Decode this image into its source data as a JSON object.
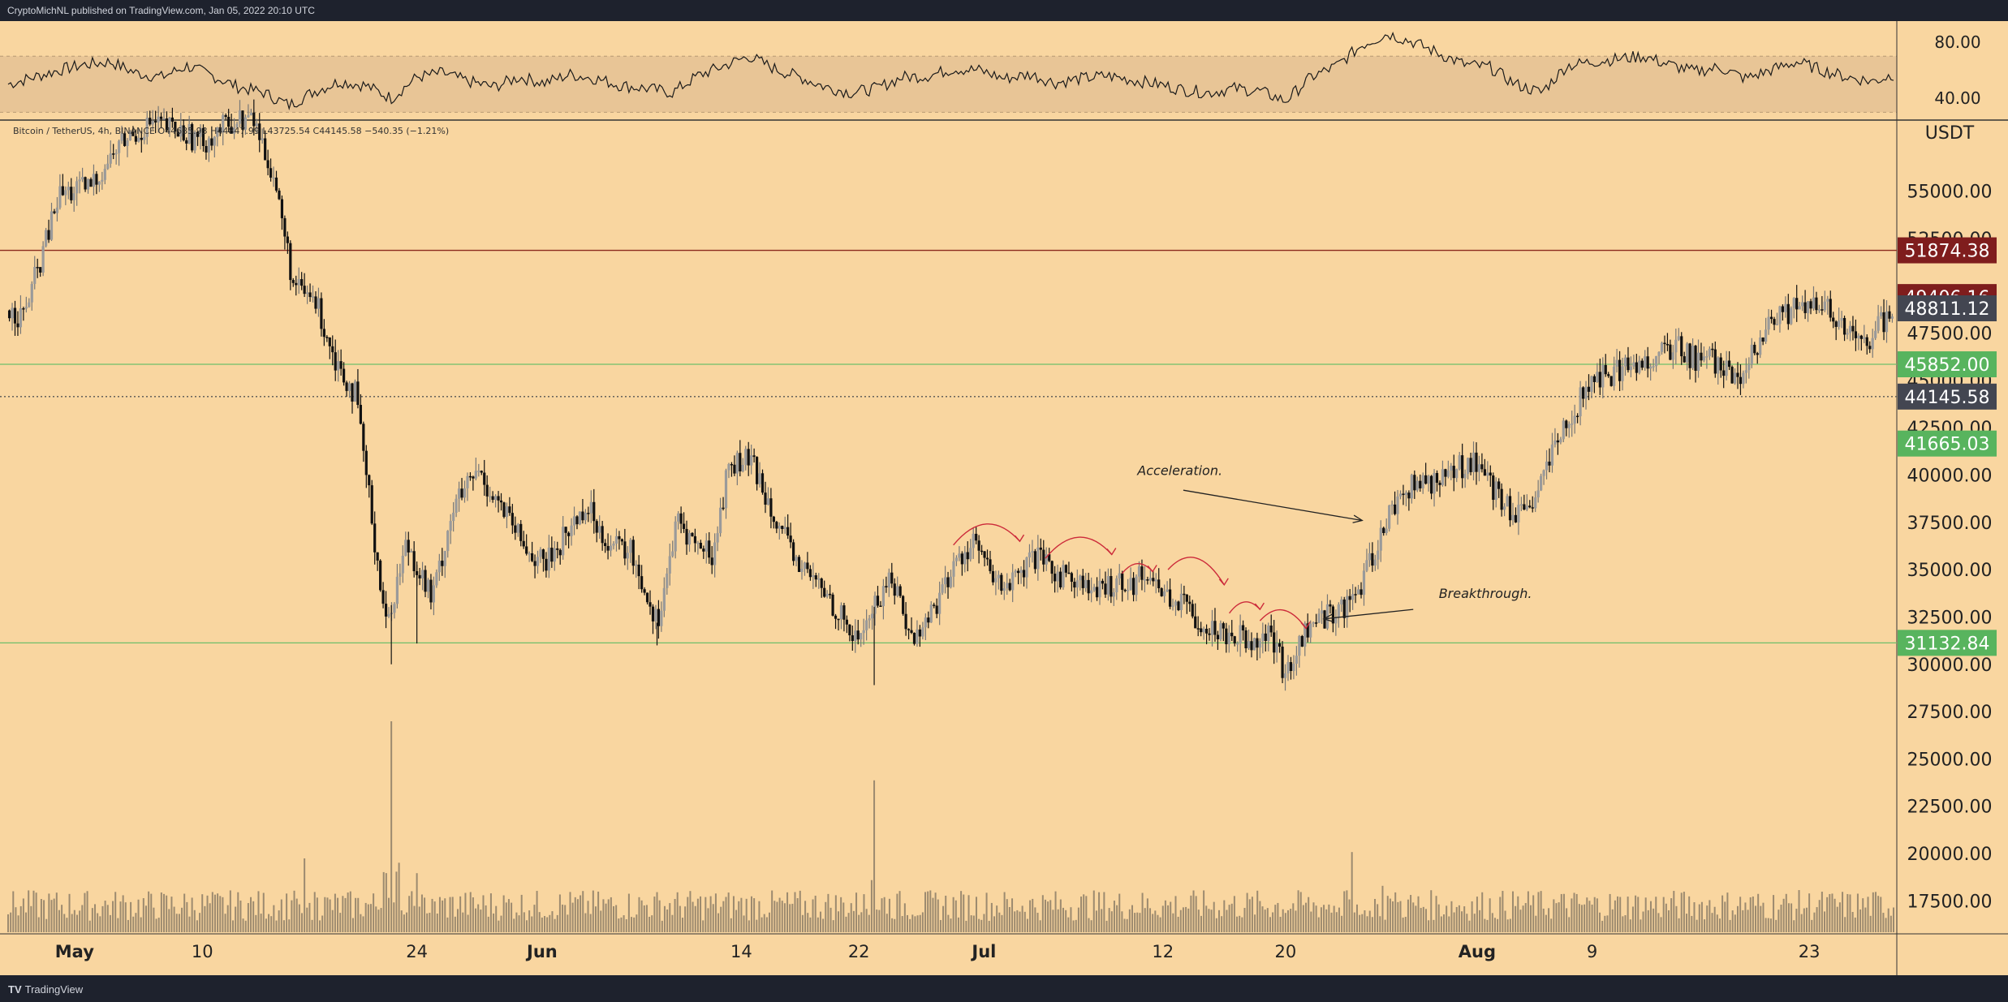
{
  "header": {
    "publish_line": "CryptoMichNL published on TradingView.com, Jan 05, 2022 20:10 UTC"
  },
  "footer": {
    "brand_logo": "TV",
    "brand_text": "TradingView"
  },
  "colors": {
    "background": "#f9d6a0",
    "candle": "#111111",
    "candle_up_wick": "#777777",
    "support_line": "#6fbf6a",
    "resistance_line": "#8b2a1e",
    "badge_red": "#7f1d1d",
    "badge_green": "#58b45e",
    "badge_dark": "#434651",
    "volume": "#8c7c66",
    "arrow_red": "#cc2a3a"
  },
  "chart_data": {
    "type": "candlestick",
    "instrument_line": "Bitcoin / TetherUS, 4h, BINANCE",
    "ohlc": {
      "open": "O44685.93",
      "high": "H44847.99",
      "low": "L43725.54",
      "close": "C44145.58",
      "change": "−540.35 (−1.21%)"
    },
    "currency": "USDT",
    "ylim": [
      15800,
      58800
    ],
    "price_ticks": [
      "55000.00",
      "52500.00",
      "47500.00",
      "45000.00",
      "42500.00",
      "40000.00",
      "37500.00",
      "35000.00",
      "32500.00",
      "30000.00",
      "27500.00",
      "25000.00",
      "22500.00",
      "20000.00",
      "17500.00"
    ],
    "price_tick_values": [
      55000,
      52500,
      47500,
      45000,
      42500,
      40000,
      37500,
      35000,
      32500,
      30000,
      27500,
      25000,
      22500,
      20000,
      17500
    ],
    "x_ticks": [
      {
        "label": "May",
        "bold": true,
        "t": 26
      },
      {
        "label": "10",
        "bold": false,
        "t": 76
      },
      {
        "label": "24",
        "bold": false,
        "t": 160
      },
      {
        "label": "Jun",
        "bold": true,
        "t": 209
      },
      {
        "label": "14",
        "bold": false,
        "t": 287
      },
      {
        "label": "22",
        "bold": false,
        "t": 333
      },
      {
        "label": "Jul",
        "bold": true,
        "t": 382
      },
      {
        "label": "12",
        "bold": false,
        "t": 452
      },
      {
        "label": "20",
        "bold": false,
        "t": 500
      },
      {
        "label": "Aug",
        "bold": true,
        "t": 575
      },
      {
        "label": "9",
        "bold": false,
        "t": 620
      },
      {
        "label": "23",
        "bold": false,
        "t": 705
      }
    ],
    "price_series": [
      [
        0,
        48700
      ],
      [
        6,
        48400
      ],
      [
        12,
        51000
      ],
      [
        20,
        54800
      ],
      [
        32,
        55200
      ],
      [
        44,
        57500
      ],
      [
        56,
        58600
      ],
      [
        68,
        58100
      ],
      [
        76,
        57600
      ],
      [
        88,
        58700
      ],
      [
        96,
        58800
      ],
      [
        104,
        55800
      ],
      [
        112,
        49800
      ],
      [
        120,
        49300
      ],
      [
        128,
        46200
      ],
      [
        136,
        44200
      ],
      [
        148,
        32000
      ],
      [
        156,
        36500
      ],
      [
        166,
        33400
      ],
      [
        174,
        38200
      ],
      [
        184,
        40200
      ],
      [
        192,
        38500
      ],
      [
        202,
        36200
      ],
      [
        210,
        35200
      ],
      [
        218,
        36800
      ],
      [
        226,
        38400
      ],
      [
        236,
        36300
      ],
      [
        244,
        35900
      ],
      [
        254,
        32200
      ],
      [
        262,
        37500
      ],
      [
        270,
        36200
      ],
      [
        276,
        35800
      ],
      [
        282,
        40500
      ],
      [
        290,
        40800
      ],
      [
        298,
        38700
      ],
      [
        306,
        35900
      ],
      [
        314,
        34600
      ],
      [
        322,
        33400
      ],
      [
        332,
        31200
      ],
      [
        338,
        32800
      ],
      [
        346,
        34700
      ],
      [
        354,
        31200
      ],
      [
        362,
        32900
      ],
      [
        370,
        35100
      ],
      [
        378,
        36600
      ],
      [
        386,
        34200
      ],
      [
        394,
        34300
      ],
      [
        402,
        35600
      ],
      [
        410,
        34800
      ],
      [
        418,
        34600
      ],
      [
        426,
        33600
      ],
      [
        434,
        34500
      ],
      [
        440,
        34300
      ],
      [
        446,
        34900
      ],
      [
        452,
        33800
      ],
      [
        460,
        33100
      ],
      [
        470,
        31900
      ],
      [
        478,
        31700
      ],
      [
        486,
        31400
      ],
      [
        494,
        31600
      ],
      [
        500,
        29400
      ],
      [
        508,
        31800
      ],
      [
        516,
        32600
      ],
      [
        524,
        33100
      ],
      [
        530,
        34200
      ],
      [
        540,
        37800
      ],
      [
        546,
        39200
      ],
      [
        556,
        39600
      ],
      [
        566,
        40200
      ],
      [
        574,
        40900
      ],
      [
        584,
        38600
      ],
      [
        594,
        37600
      ],
      [
        600,
        39600
      ],
      [
        608,
        42100
      ],
      [
        616,
        44200
      ],
      [
        624,
        45200
      ],
      [
        632,
        45600
      ],
      [
        642,
        46100
      ],
      [
        652,
        46800
      ],
      [
        660,
        46200
      ],
      [
        670,
        45900
      ],
      [
        678,
        44500
      ],
      [
        684,
        46800
      ],
      [
        692,
        48200
      ],
      [
        700,
        48800
      ],
      [
        708,
        48800
      ],
      [
        714,
        48600
      ],
      [
        720,
        47400
      ],
      [
        728,
        46800
      ],
      [
        732,
        47900
      ],
      [
        738,
        48811
      ]
    ],
    "hlines": [
      {
        "value": 51874.38,
        "label": "51874.38",
        "color": "#7f1d1d",
        "line": "#8b2a1e",
        "style": "solid"
      },
      {
        "value": 45852.0,
        "label": "45852.00",
        "color": "#58b45e",
        "line": "#6fbf6a",
        "style": "solid"
      },
      {
        "value": 44145.58,
        "label": "44145.58",
        "color": "#434651",
        "line": "#555555",
        "style": "dotted"
      },
      {
        "value": 31132.84,
        "label": "31132.84",
        "color": "#58b45e",
        "line": "#6fbf6a",
        "style": "solid"
      }
    ],
    "price_badges": [
      {
        "value": 49406.16,
        "label": "49406.16",
        "color": "#7f1d1d"
      },
      {
        "value": 48811.12,
        "label": "48811.12",
        "color": "#434651"
      },
      {
        "value": 41665.03,
        "label": "41665.03",
        "color": "#58b45e"
      }
    ],
    "annotations": [
      {
        "text": "Acceleration.",
        "at": [
          442,
          40000
        ],
        "arrow_from": [
          460,
          39200
        ],
        "arrow_to": [
          530,
          37600
        ]
      },
      {
        "text": "Breakthrough.",
        "at": [
          560,
          33500
        ],
        "arrow_from": [
          550,
          32900
        ],
        "arrow_to": [
          515,
          32400
        ]
      }
    ],
    "curved_arrows": [
      [
        370,
        36300,
        396,
        36500
      ],
      [
        406,
        35600,
        432,
        35800
      ],
      [
        436,
        34800,
        448,
        34900
      ],
      [
        454,
        35000,
        476,
        34200
      ],
      [
        478,
        32700,
        490,
        32900
      ],
      [
        490,
        32300,
        508,
        31900
      ]
    ],
    "volume_spikes": [
      {
        "t": 150,
        "v": 1.0
      },
      {
        "t": 339,
        "v": 0.72
      },
      {
        "t": 526,
        "v": 0.38
      },
      {
        "t": 116,
        "v": 0.35
      },
      {
        "t": 160,
        "v": 0.28
      },
      {
        "t": 538,
        "v": 0.22
      }
    ],
    "rsi": {
      "ticks": [
        "80.00",
        "40.00"
      ],
      "tick_values": [
        80,
        40
      ],
      "ylim": [
        25,
        95
      ],
      "band": [
        30,
        70
      ],
      "series": [
        [
          0,
          50
        ],
        [
          10,
          55
        ],
        [
          20,
          60
        ],
        [
          30,
          64
        ],
        [
          40,
          66
        ],
        [
          50,
          58
        ],
        [
          60,
          55
        ],
        [
          70,
          63
        ],
        [
          80,
          56
        ],
        [
          90,
          48
        ],
        [
          100,
          44
        ],
        [
          110,
          35
        ],
        [
          120,
          45
        ],
        [
          130,
          52
        ],
        [
          140,
          49
        ],
        [
          150,
          40
        ],
        [
          160,
          55
        ],
        [
          170,
          58
        ],
        [
          180,
          52
        ],
        [
          190,
          48
        ],
        [
          200,
          55
        ],
        [
          210,
          51
        ],
        [
          220,
          57
        ],
        [
          230,
          54
        ],
        [
          240,
          49
        ],
        [
          250,
          47
        ],
        [
          260,
          44
        ],
        [
          270,
          56
        ],
        [
          280,
          63
        ],
        [
          290,
          70
        ],
        [
          300,
          61
        ],
        [
          310,
          55
        ],
        [
          320,
          48
        ],
        [
          330,
          44
        ],
        [
          340,
          47
        ],
        [
          350,
          55
        ],
        [
          360,
          56
        ],
        [
          370,
          61
        ],
        [
          380,
          60
        ],
        [
          390,
          54
        ],
        [
          400,
          57
        ],
        [
          410,
          51
        ],
        [
          420,
          54
        ],
        [
          430,
          56
        ],
        [
          440,
          53
        ],
        [
          450,
          50
        ],
        [
          460,
          46
        ],
        [
          470,
          44
        ],
        [
          480,
          47
        ],
        [
          490,
          45
        ],
        [
          500,
          38
        ],
        [
          510,
          55
        ],
        [
          520,
          63
        ],
        [
          530,
          78
        ],
        [
          540,
          86
        ],
        [
          550,
          80
        ],
        [
          560,
          72
        ],
        [
          570,
          64
        ],
        [
          580,
          62
        ],
        [
          590,
          50
        ],
        [
          600,
          44
        ],
        [
          610,
          63
        ],
        [
          620,
          66
        ],
        [
          630,
          68
        ],
        [
          640,
          70
        ],
        [
          650,
          64
        ],
        [
          660,
          59
        ],
        [
          670,
          62
        ],
        [
          680,
          54
        ],
        [
          690,
          60
        ],
        [
          700,
          66
        ],
        [
          710,
          60
        ],
        [
          720,
          55
        ],
        [
          730,
          52
        ],
        [
          738,
          57
        ]
      ]
    }
  }
}
